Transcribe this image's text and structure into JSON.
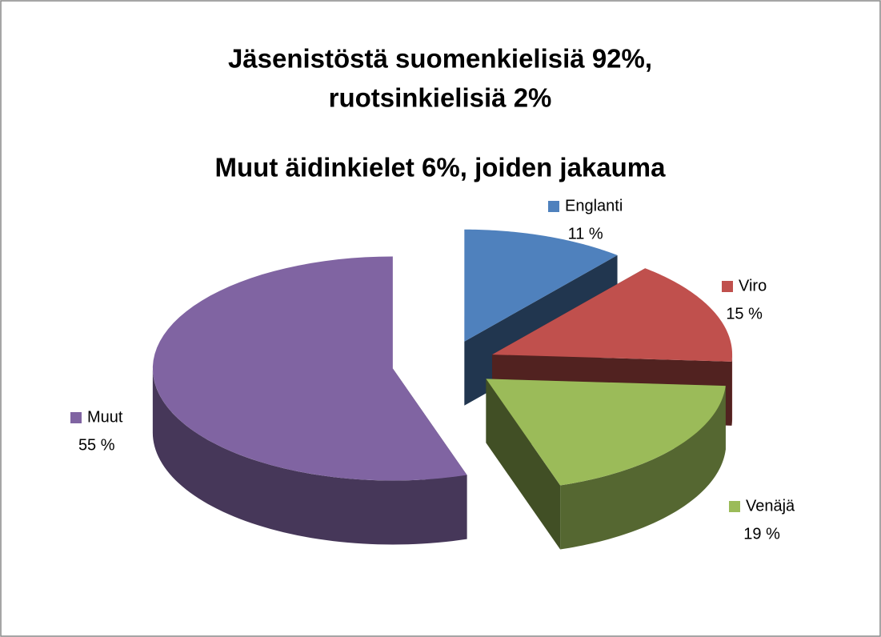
{
  "chart_data": {
    "type": "pie",
    "title": [
      "Jäsenistöstä suomenkielisiä 92%,",
      "ruotsinkielisiä 2%"
    ],
    "subtitle": "Muut äidinkielet 6%, joiden jakauma",
    "categories": [
      "Englanti",
      "Viro",
      "Venäjä",
      "Muut"
    ],
    "values": [
      11,
      15,
      19,
      55
    ],
    "value_labels": [
      "11 %",
      "15 %",
      "19 %",
      "55 %"
    ],
    "colors": [
      "#4f81bd",
      "#c0504d",
      "#9bbb59",
      "#8064a2"
    ]
  }
}
